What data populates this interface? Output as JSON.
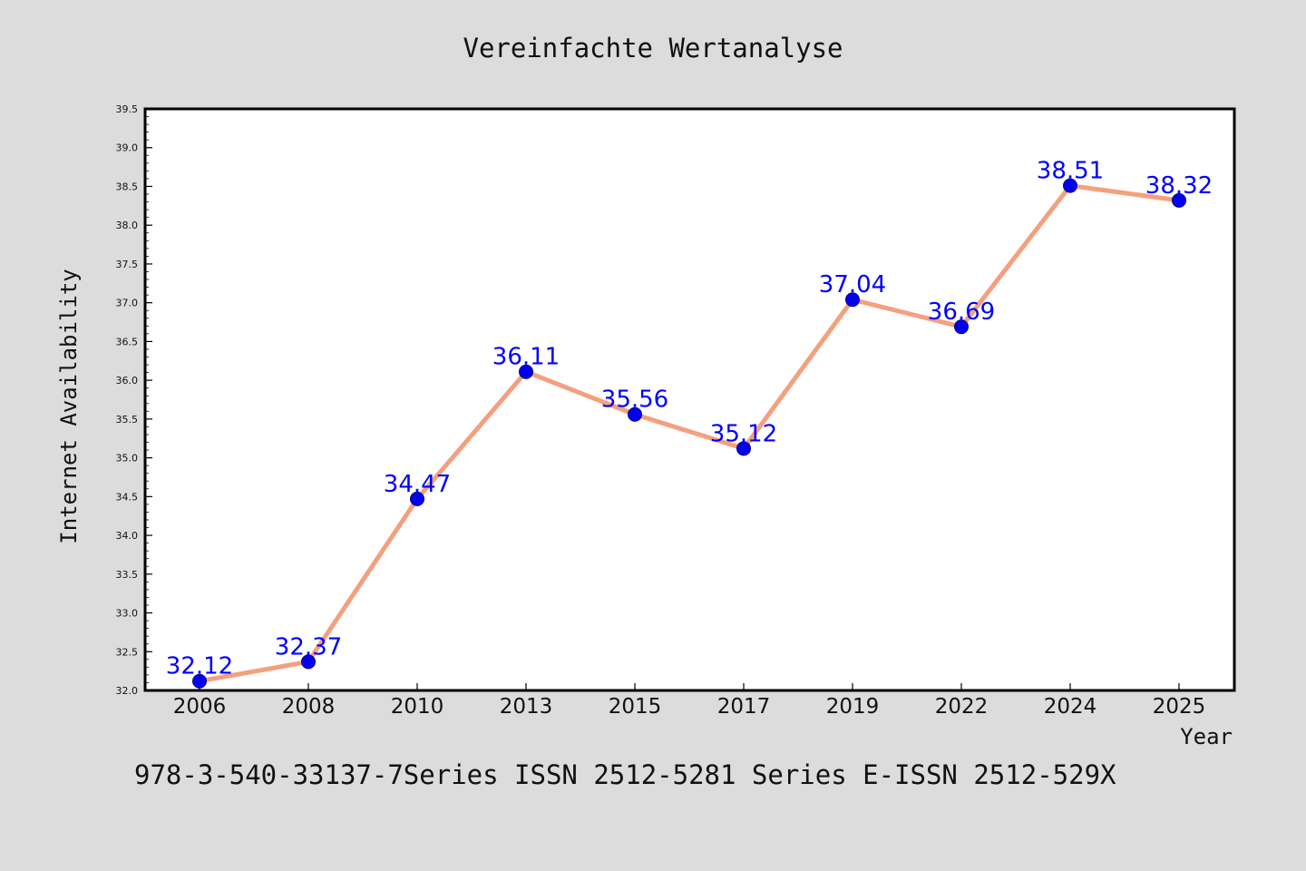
{
  "chart_data": {
    "type": "line",
    "title": "Vereinfachte Wertanalyse",
    "xlabel": "Year",
    "ylabel": "Internet Availability",
    "categories": [
      "2006",
      "2008",
      "2010",
      "2013",
      "2015",
      "2017",
      "2019",
      "2022",
      "2024",
      "2025"
    ],
    "series": [
      {
        "values": [
          32.12,
          32.37,
          34.47,
          36.11,
          35.56,
          35.12,
          37.04,
          36.69,
          38.51,
          38.32
        ],
        "data_labels": [
          "32.12",
          "32.37",
          "34.47",
          "36.11",
          "35.56",
          "35.12",
          "37.04",
          "36.69",
          "38.51",
          "38.32"
        ]
      }
    ],
    "ylim": [
      32.0,
      39.5
    ],
    "yticks": [
      "32.0",
      "32.5",
      "33.0",
      "33.5",
      "34.0",
      "34.5",
      "35.0",
      "35.5",
      "36.0",
      "36.5",
      "37.0",
      "37.5",
      "38.0",
      "38.5",
      "39.0",
      "39.5"
    ],
    "grid": false,
    "line_color": "#f4a07e",
    "marker_color": "#0000ee",
    "label_color": "#0000ff"
  },
  "footer": {
    "text": "978-3-540-33137-7Series ISSN 2512-5281 Series E-ISSN 2512-529X"
  }
}
